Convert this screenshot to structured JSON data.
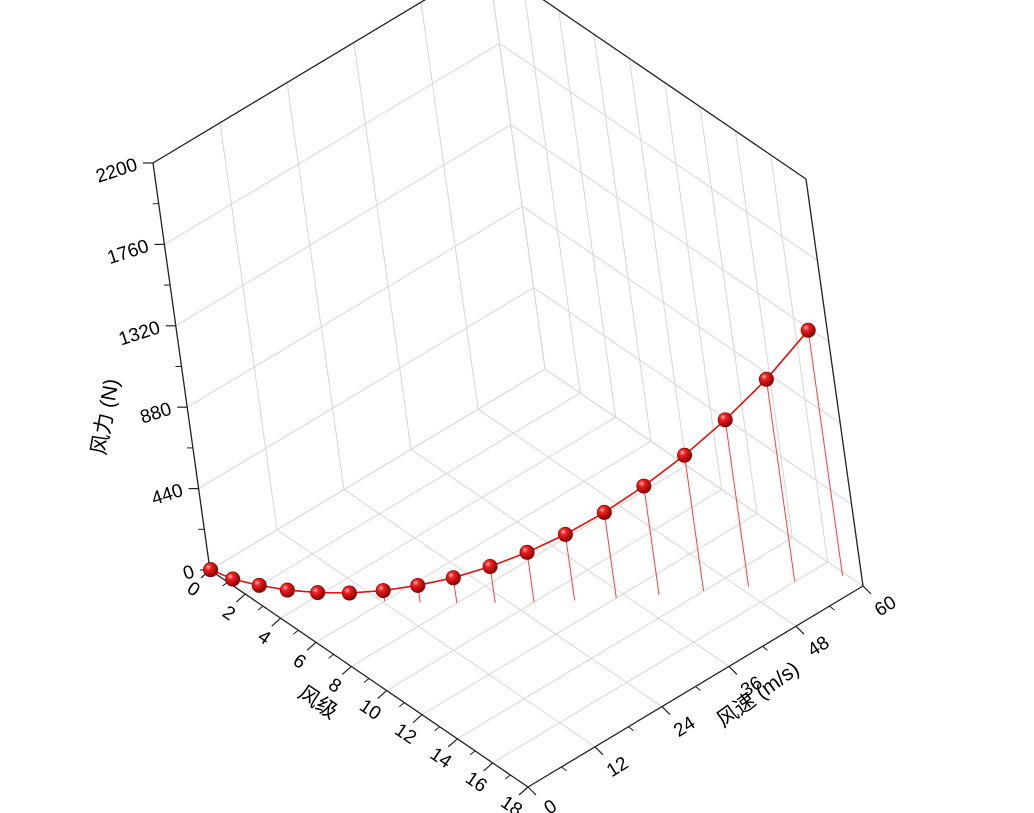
{
  "chart_data": {
    "type": "scatter",
    "style": "3d-scatter-with-drop-lines",
    "x_axis": {
      "label": "风级",
      "ticks": [
        "0",
        "2",
        "4",
        "6",
        "8",
        "10",
        "12",
        "14",
        "16",
        "18"
      ],
      "range": [
        0,
        18
      ]
    },
    "y_axis": {
      "label": "风速 (m/s)",
      "ticks": [
        "0",
        "12",
        "24",
        "36",
        "48",
        "60"
      ],
      "range": [
        0,
        60
      ]
    },
    "z_axis": {
      "label": "风力 (N)",
      "ticks": [
        "0",
        "440",
        "880",
        "1320",
        "1760",
        "2200"
      ],
      "range": [
        0,
        2200
      ]
    },
    "series": [
      {
        "x": [
          0,
          1,
          2,
          3,
          4,
          5,
          6,
          7,
          8,
          9,
          10,
          11,
          12,
          13,
          14,
          15,
          16,
          17
        ],
        "y": [
          0.1,
          0.9,
          2.5,
          4.4,
          6.7,
          9.3,
          12.3,
          15.5,
          18.9,
          22.6,
          26.4,
          30.5,
          34.8,
          39.3,
          44.1,
          49.0,
          54.1,
          59.5
        ],
        "z": [
          0,
          0,
          2,
          7,
          17,
          33,
          57,
          92,
          137,
          196,
          269,
          357,
          463,
          589,
          734,
          902,
          1094,
          1326
        ]
      }
    ],
    "marker_color": "#e01010",
    "line_color": "#e01010",
    "drop_line_color": "#ff3b3b",
    "grid": true,
    "legend": "none"
  }
}
